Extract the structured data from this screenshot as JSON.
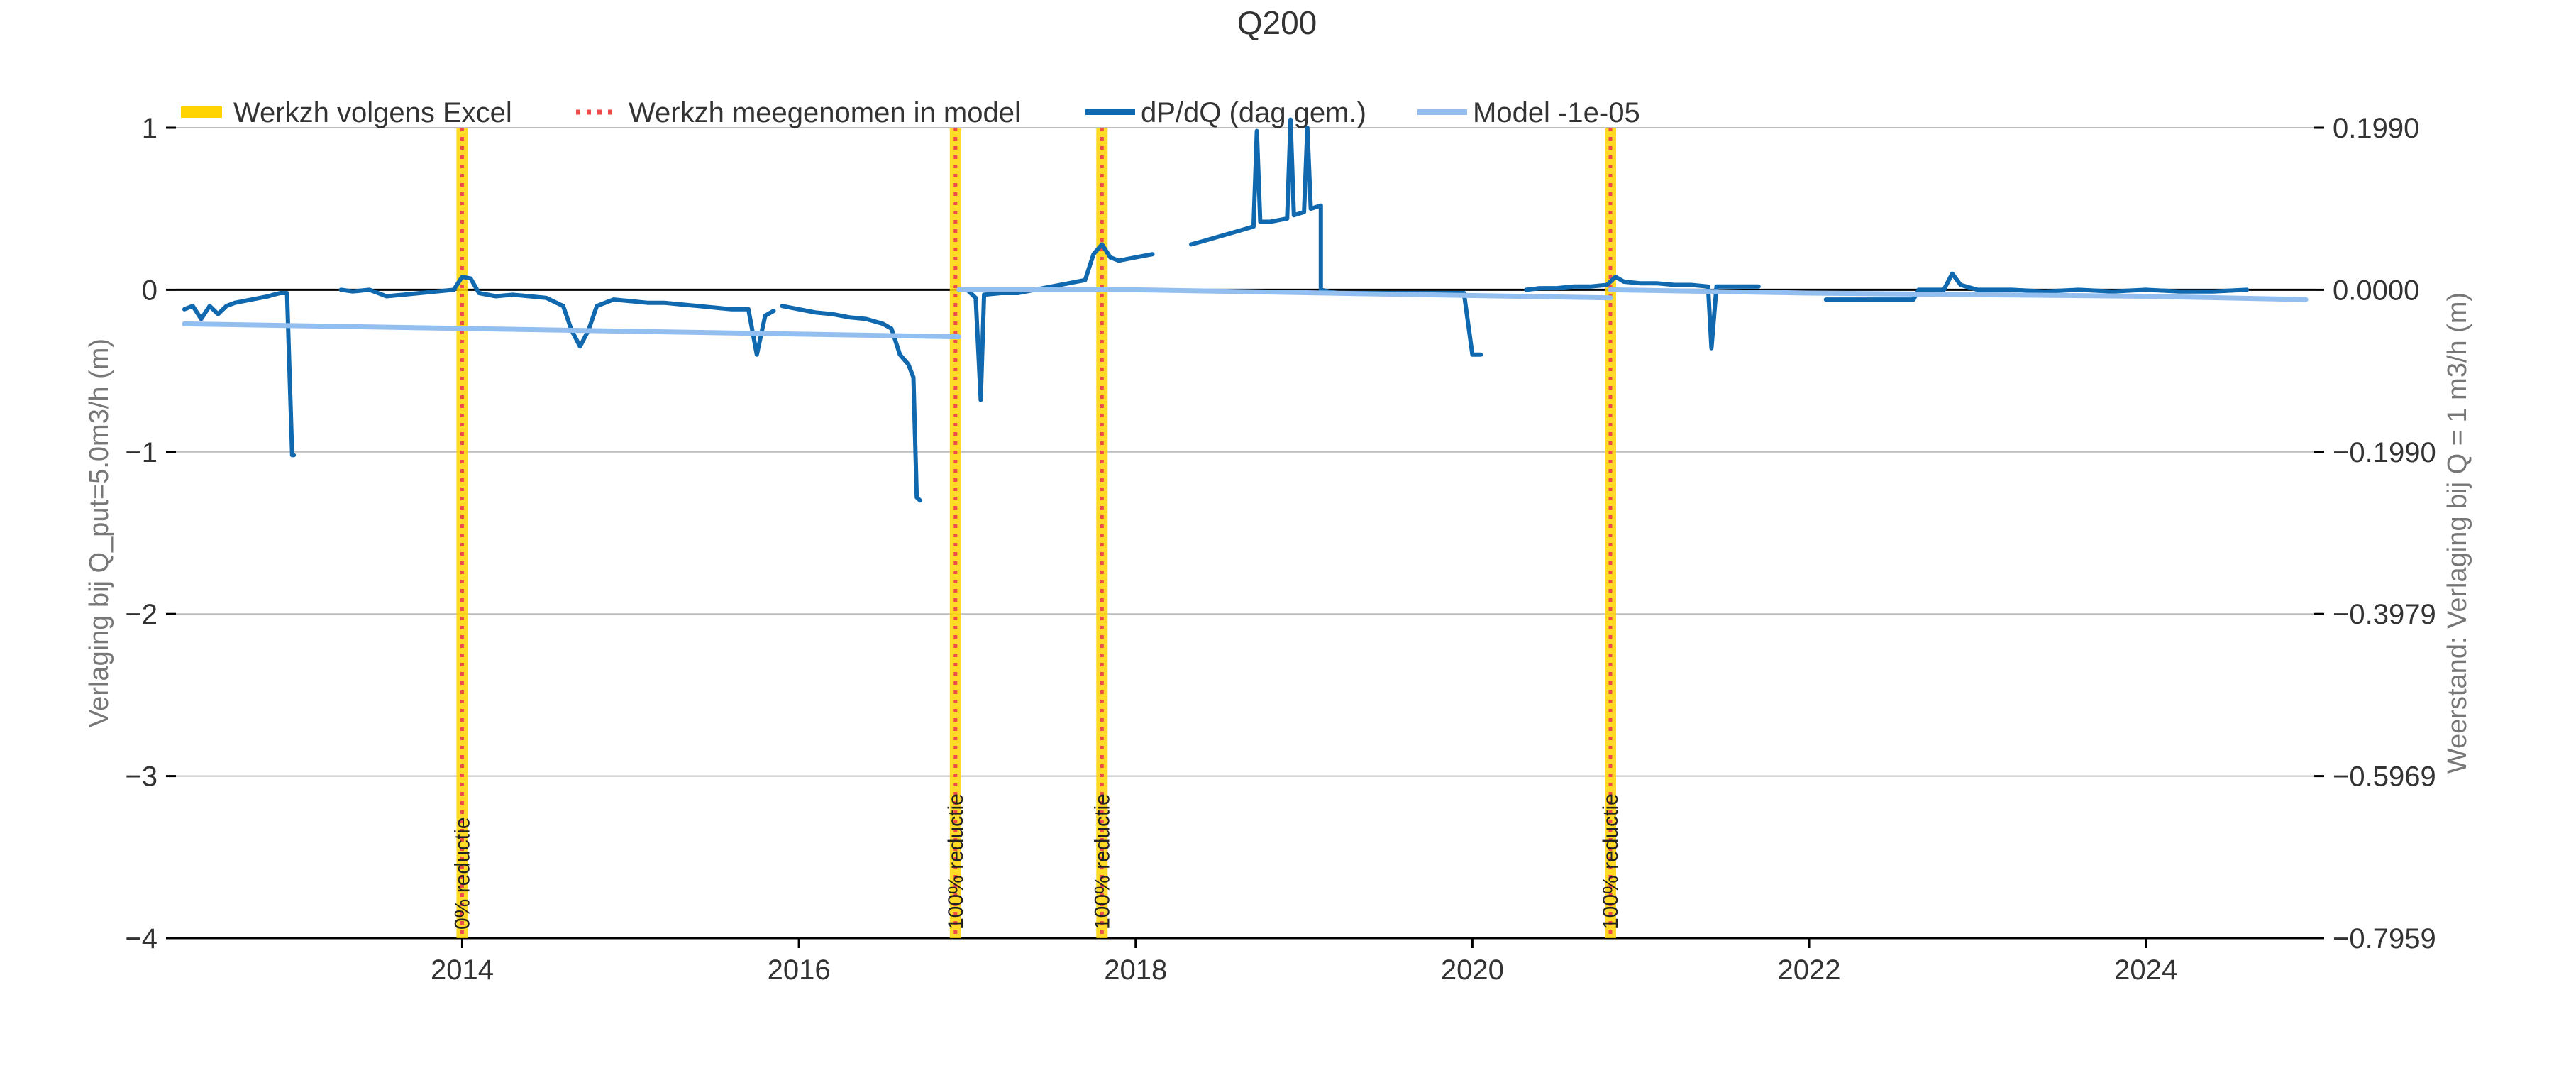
{
  "chart_data": {
    "type": "line",
    "title": "Q200",
    "ylabel_left": "Verlaging bij Q_put=5.0m3/h (m)",
    "ylabel_right": "Weerstand: Verlaging bij Q = 1 m3/h (m)",
    "xlabel": "",
    "xlim": [
      2012.3,
      2025.0
    ],
    "ylim_left": [
      -4,
      1
    ],
    "ylim_right": [
      -0.7959,
      0.199
    ],
    "x_ticks": [
      2014,
      2016,
      2018,
      2020,
      2022,
      2024
    ],
    "x_tick_labels": [
      "2014",
      "2016",
      "2018",
      "2020",
      "2022",
      "2024"
    ],
    "y_ticks_left": [
      1,
      0,
      -1,
      -2,
      -3,
      -4
    ],
    "y_tick_labels_left": [
      "1",
      "0",
      "−1",
      "−2",
      "−3",
      "−4"
    ],
    "y_tick_labels_right": [
      "0.1990",
      "0.0000",
      "−0.1990",
      "−0.3979",
      "−0.5969",
      "−0.7959"
    ],
    "grid": "horizontal",
    "legend_position": "top",
    "legend": [
      {
        "label": "Werkzh volgens Excel",
        "style": "thick-bar",
        "color": "#FFD400"
      },
      {
        "label": "Werkzh meegenomen in model",
        "style": "dotted",
        "color": "#EF4A4A"
      },
      {
        "label": "dP/dQ (dag gem.)",
        "style": "line",
        "color": "#1068AE"
      },
      {
        "label": "Model -1e-05",
        "style": "line",
        "color": "#93BFF0"
      }
    ],
    "events": [
      {
        "x": 2014.0,
        "label": "0% reductie"
      },
      {
        "x": 2016.93,
        "label": "100% reductie"
      },
      {
        "x": 2017.8,
        "label": "100% reductie"
      },
      {
        "x": 2020.82,
        "label": "100% reductie"
      }
    ],
    "series": [
      {
        "name": "dP/dQ (dag gem.)",
        "color": "#1068AE",
        "segments": [
          [
            [
              2012.35,
              -0.12
            ],
            [
              2012.4,
              -0.1
            ],
            [
              2012.45,
              -0.18
            ],
            [
              2012.5,
              -0.1
            ],
            [
              2012.55,
              -0.15
            ],
            [
              2012.6,
              -0.1
            ],
            [
              2012.65,
              -0.08
            ],
            [
              2012.7,
              -0.07
            ],
            [
              2012.75,
              -0.06
            ],
            [
              2012.8,
              -0.05
            ],
            [
              2012.85,
              -0.04
            ],
            [
              2012.88,
              -0.03
            ],
            [
              2012.92,
              -0.02
            ],
            [
              2012.96,
              -0.02
            ],
            [
              2012.99,
              -1.02
            ],
            [
              2013.0,
              -1.02
            ]
          ],
          [
            [
              2013.28,
              0.0
            ],
            [
              2013.35,
              -0.01
            ],
            [
              2013.45,
              0.0
            ],
            [
              2013.55,
              -0.04
            ],
            [
              2013.65,
              -0.03
            ],
            [
              2013.75,
              -0.02
            ],
            [
              2013.85,
              -0.01
            ],
            [
              2013.95,
              0.0
            ],
            [
              2014.0,
              0.08
            ],
            [
              2014.05,
              0.07
            ],
            [
              2014.1,
              -0.02
            ],
            [
              2014.2,
              -0.04
            ],
            [
              2014.3,
              -0.03
            ],
            [
              2014.4,
              -0.04
            ],
            [
              2014.5,
              -0.05
            ],
            [
              2014.6,
              -0.1
            ],
            [
              2014.65,
              -0.25
            ],
            [
              2014.7,
              -0.35
            ],
            [
              2014.75,
              -0.25
            ],
            [
              2014.8,
              -0.1
            ],
            [
              2014.9,
              -0.06
            ],
            [
              2015.0,
              -0.07
            ],
            [
              2015.1,
              -0.08
            ],
            [
              2015.2,
              -0.08
            ],
            [
              2015.3,
              -0.09
            ],
            [
              2015.4,
              -0.1
            ],
            [
              2015.5,
              -0.11
            ],
            [
              2015.6,
              -0.12
            ],
            [
              2015.7,
              -0.12
            ],
            [
              2015.75,
              -0.4
            ],
            [
              2015.8,
              -0.16
            ],
            [
              2015.85,
              -0.13
            ]
          ],
          [
            [
              2015.9,
              -0.1
            ],
            [
              2016.0,
              -0.12
            ],
            [
              2016.1,
              -0.14
            ],
            [
              2016.2,
              -0.15
            ],
            [
              2016.3,
              -0.17
            ],
            [
              2016.4,
              -0.18
            ],
            [
              2016.5,
              -0.21
            ],
            [
              2016.55,
              -0.24
            ],
            [
              2016.6,
              -0.4
            ],
            [
              2016.65,
              -0.46
            ],
            [
              2016.68,
              -0.54
            ],
            [
              2016.7,
              -1.28
            ],
            [
              2016.72,
              -1.3
            ]
          ],
          [
            [
              2016.95,
              0.0
            ],
            [
              2017.0,
              0.0
            ],
            [
              2017.05,
              -0.05
            ],
            [
              2017.08,
              -0.68
            ],
            [
              2017.1,
              -0.03
            ],
            [
              2017.2,
              -0.02
            ],
            [
              2017.3,
              -0.02
            ],
            [
              2017.4,
              0.0
            ],
            [
              2017.5,
              0.02
            ],
            [
              2017.6,
              0.04
            ],
            [
              2017.7,
              0.06
            ],
            [
              2017.75,
              0.22
            ],
            [
              2017.8,
              0.28
            ],
            [
              2017.85,
              0.2
            ],
            [
              2017.9,
              0.18
            ],
            [
              2018.0,
              0.2
            ],
            [
              2018.1,
              0.22
            ]
          ],
          [
            [
              2018.33,
              0.28
            ],
            [
              2018.4,
              0.3
            ],
            [
              2018.5,
              0.33
            ],
            [
              2018.6,
              0.36
            ],
            [
              2018.7,
              0.39
            ],
            [
              2018.72,
              0.98
            ],
            [
              2018.74,
              0.42
            ],
            [
              2018.8,
              0.42
            ],
            [
              2018.85,
              0.43
            ],
            [
              2018.9,
              0.44
            ],
            [
              2018.92,
              1.05
            ],
            [
              2018.94,
              0.46
            ],
            [
              2019.0,
              0.48
            ],
            [
              2019.02,
              1.0
            ],
            [
              2019.04,
              0.5
            ],
            [
              2019.1,
              0.52
            ],
            [
              2019.1,
              0.0
            ],
            [
              2019.2,
              -0.02
            ],
            [
              2019.3,
              -0.02
            ],
            [
              2019.5,
              -0.02
            ],
            [
              2019.7,
              -0.02
            ],
            [
              2019.95,
              -0.02
            ],
            [
              2020.0,
              -0.4
            ],
            [
              2020.05,
              -0.4
            ]
          ],
          [
            [
              2020.32,
              0.0
            ],
            [
              2020.4,
              0.01
            ],
            [
              2020.5,
              0.01
            ],
            [
              2020.6,
              0.02
            ],
            [
              2020.7,
              0.02
            ],
            [
              2020.8,
              0.03
            ],
            [
              2020.85,
              0.08
            ],
            [
              2020.9,
              0.05
            ],
            [
              2021.0,
              0.04
            ],
            [
              2021.1,
              0.04
            ],
            [
              2021.2,
              0.03
            ],
            [
              2021.3,
              0.03
            ],
            [
              2021.4,
              0.02
            ],
            [
              2021.42,
              -0.36
            ],
            [
              2021.45,
              0.02
            ],
            [
              2021.5,
              0.02
            ],
            [
              2021.6,
              0.02
            ],
            [
              2021.7,
              0.02
            ]
          ],
          [
            [
              2022.1,
              -0.06
            ],
            [
              2022.3,
              -0.06
            ],
            [
              2022.5,
              -0.06
            ],
            [
              2022.62,
              -0.06
            ],
            [
              2022.65,
              0.0
            ],
            [
              2022.8,
              0.0
            ],
            [
              2022.85,
              0.1
            ],
            [
              2022.9,
              0.03
            ],
            [
              2023.0,
              0.0
            ],
            [
              2023.2,
              0.0
            ],
            [
              2023.4,
              -0.01
            ],
            [
              2023.6,
              0.0
            ],
            [
              2023.8,
              -0.01
            ],
            [
              2024.0,
              0.0
            ],
            [
              2024.2,
              -0.01
            ],
            [
              2024.4,
              -0.01
            ],
            [
              2024.6,
              0.0
            ]
          ]
        ]
      },
      {
        "name": "Model -1e-05",
        "color": "#93BFF0",
        "segments": [
          [
            [
              2012.35,
              -0.21
            ],
            [
              2016.95,
              -0.29
            ]
          ],
          [
            [
              2016.95,
              0.0
            ],
            [
              2018.0,
              0.0
            ],
            [
              2020.82,
              -0.05
            ]
          ],
          [
            [
              2020.82,
              0.0
            ],
            [
              2022.0,
              -0.02
            ],
            [
              2024.0,
              -0.04
            ],
            [
              2024.95,
              -0.06
            ]
          ]
        ]
      }
    ]
  }
}
